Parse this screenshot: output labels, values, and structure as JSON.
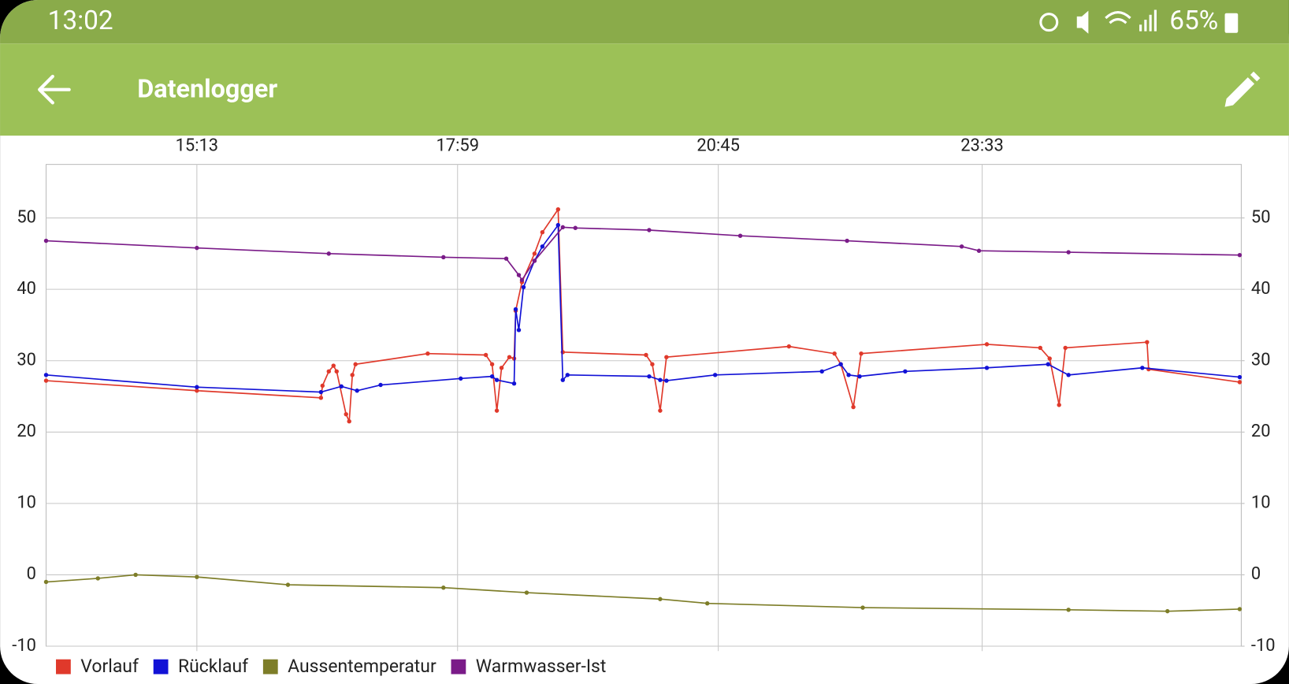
{
  "status_bar": {
    "time": "13:02",
    "battery": "65%"
  },
  "app_bar": {
    "title": "Datenlogger"
  },
  "chart_data": {
    "type": "line",
    "xlim": [
      "13:37",
      "02:18"
    ],
    "xticks": [
      "15:13",
      "17:59",
      "20:45",
      "23:33"
    ],
    "ylim": [
      -10,
      57.5
    ],
    "yticks": [
      -10,
      0,
      10,
      20,
      30,
      40,
      50
    ],
    "y2lim": [
      -10,
      57.5
    ],
    "y2ticks": [
      -10,
      0,
      10,
      20,
      30,
      40,
      50
    ],
    "grid": true,
    "legend": "bottom-left",
    "series": [
      {
        "name": "Vorlauf",
        "color": "#e0392b",
        "x": [
          "13:37",
          "15:13",
          "16:32",
          "16:33",
          "16:37",
          "16:40",
          "16:42",
          "16:48",
          "16:50",
          "16:52",
          "16:54",
          "17:40",
          "18:17",
          "18:21",
          "18:24",
          "18:27",
          "18:32",
          "18:35",
          "18:36",
          "18:40",
          "18:48",
          "18:53",
          "19:03",
          "19:06",
          "19:59",
          "20:03",
          "20:08",
          "20:12",
          "21:30",
          "21:59",
          "22:03",
          "22:11",
          "22:16",
          "23:36",
          "00:10",
          "00:16",
          "00:22",
          "00:26",
          "01:18",
          "01:19",
          "02:17"
        ],
        "values": [
          27.2,
          25.8,
          24.8,
          26.5,
          28.5,
          29.3,
          28.5,
          22.5,
          21.5,
          28,
          29.5,
          31,
          30.8,
          29.5,
          23,
          29,
          30.5,
          30.3,
          37,
          41,
          45,
          48,
          51.2,
          31.2,
          30.8,
          29.5,
          23,
          30.5,
          32,
          31,
          29.5,
          23.5,
          31,
          32.3,
          31.8,
          30.3,
          23.8,
          31.8,
          32.6,
          28.8,
          27
        ]
      },
      {
        "name": "Rücklauf",
        "color": "#1212d6",
        "x": [
          "13:37",
          "15:13",
          "16:32",
          "16:45",
          "16:55",
          "17:10",
          "18:01",
          "18:21",
          "18:24",
          "18:35",
          "18:36",
          "18:38",
          "18:41",
          "18:48",
          "18:53",
          "19:03",
          "19:06",
          "19:09",
          "20:01",
          "20:08",
          "20:12",
          "20:43",
          "21:51",
          "22:03",
          "22:08",
          "22:15",
          "22:44",
          "23:36",
          "00:15",
          "00:28",
          "01:15",
          "02:17"
        ],
        "values": [
          28,
          26.3,
          25.6,
          26.4,
          25.8,
          26.6,
          27.5,
          27.8,
          27.3,
          26.8,
          37.2,
          34.3,
          40.3,
          44,
          46,
          49,
          27.3,
          28,
          27.8,
          27.3,
          27.2,
          28,
          28.5,
          29.5,
          28,
          27.8,
          28.5,
          29,
          29.5,
          28,
          29,
          27.7
        ]
      },
      {
        "name": "Aussentemperatur",
        "color": "#7d7d28",
        "x": [
          "13:37",
          "14:10",
          "14:34",
          "15:13",
          "16:11",
          "17:50",
          "18:43",
          "20:08",
          "20:38",
          "22:17",
          "00:28",
          "01:31",
          "02:17"
        ],
        "values": [
          -1,
          -0.5,
          0,
          -0.3,
          -1.4,
          -1.8,
          -2.5,
          -3.4,
          -4,
          -4.6,
          -4.9,
          -5.1,
          -4.8
        ]
      },
      {
        "name": "Warmwasser-Ist",
        "color": "#7a1b88",
        "x": [
          "13:37",
          "15:13",
          "16:37",
          "17:50",
          "18:30",
          "18:38",
          "18:40",
          "18:48",
          "19:06",
          "19:14",
          "20:01",
          "20:59",
          "22:07",
          "23:20",
          "23:31",
          "00:28",
          "02:17"
        ],
        "values": [
          46.8,
          45.8,
          45,
          44.5,
          44.3,
          42,
          41.3,
          44,
          48.7,
          48.6,
          48.3,
          47.5,
          46.8,
          46,
          45.4,
          45.2,
          44.8
        ]
      }
    ]
  }
}
